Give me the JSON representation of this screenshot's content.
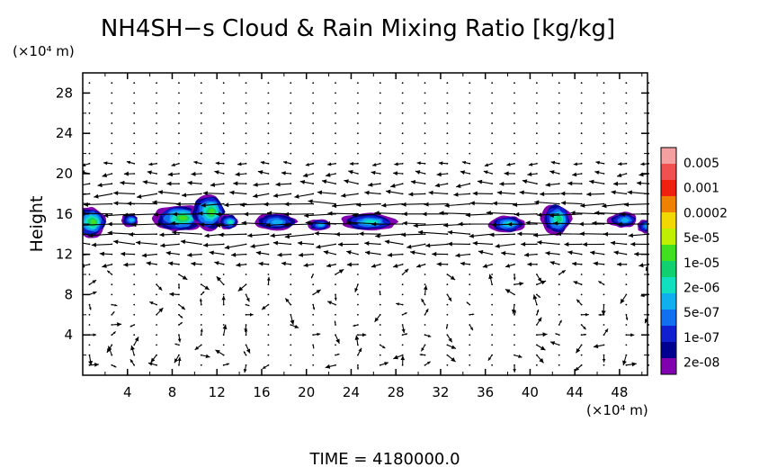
{
  "chart_data": {
    "type": "heatmap",
    "title": "NH4SH−s Cloud & Rain Mixing Ratio [kg/kg]",
    "ylabel": "Height",
    "y_unit": "(×10⁴ m)",
    "x_unit": "(×10⁴ m)",
    "footer": "TIME = 4180000.0",
    "xlim": [
      0,
      50.5
    ],
    "ylim": [
      0,
      30
    ],
    "x_ticks": [
      "4",
      "8",
      "12",
      "16",
      "20",
      "24",
      "28",
      "32",
      "36",
      "40",
      "44",
      "48"
    ],
    "x_tick_values": [
      4,
      8,
      12,
      16,
      20,
      24,
      28,
      32,
      36,
      40,
      44,
      48
    ],
    "y_ticks": [
      "4",
      "8",
      "12",
      "16",
      "20",
      "24",
      "28"
    ],
    "y_tick_values": [
      4,
      8,
      12,
      16,
      20,
      24,
      28
    ],
    "colorbar": {
      "labels": [
        "0.005",
        "0.001",
        "0.0002",
        "5e-05",
        "1e-05",
        "2e-06",
        "5e-07",
        "1e-07",
        "2e-08"
      ],
      "colors": [
        "#f4a0a0",
        "#f05050",
        "#f02010",
        "#f08000",
        "#f0d800",
        "#c0f000",
        "#40e020",
        "#10d070",
        "#10e0c0",
        "#10b0f0",
        "#1070f0",
        "#1020d0",
        "#000090",
        "#8000b0"
      ]
    },
    "cloud_regions": [
      {
        "x": 0.6,
        "y": 15.2,
        "rx": 1.5,
        "ry": 1.6,
        "peak": 5
      },
      {
        "x": 4.2,
        "y": 15.4,
        "rx": 0.8,
        "ry": 0.7,
        "peak": 2
      },
      {
        "x": 8.6,
        "y": 15.6,
        "rx": 2.3,
        "ry": 1.4,
        "peak": 5
      },
      {
        "x": 11.2,
        "y": 16.2,
        "rx": 1.6,
        "ry": 1.9,
        "peak": 5
      },
      {
        "x": 13.0,
        "y": 15.2,
        "rx": 0.9,
        "ry": 0.8,
        "peak": 3
      },
      {
        "x": 17.2,
        "y": 15.2,
        "rx": 2.0,
        "ry": 0.9,
        "peak": 2
      },
      {
        "x": 21.1,
        "y": 14.9,
        "rx": 1.1,
        "ry": 0.6,
        "peak": 2
      },
      {
        "x": 25.5,
        "y": 15.2,
        "rx": 2.6,
        "ry": 0.9,
        "peak": 3
      },
      {
        "x": 37.9,
        "y": 15.0,
        "rx": 1.6,
        "ry": 0.9,
        "peak": 3
      },
      {
        "x": 42.3,
        "y": 15.5,
        "rx": 1.4,
        "ry": 1.6,
        "peak": 4
      },
      {
        "x": 48.3,
        "y": 15.4,
        "rx": 1.4,
        "ry": 0.8,
        "peak": 2
      },
      {
        "x": 50.3,
        "y": 14.8,
        "rx": 0.8,
        "ry": 0.7,
        "peak": 2
      }
    ]
  }
}
